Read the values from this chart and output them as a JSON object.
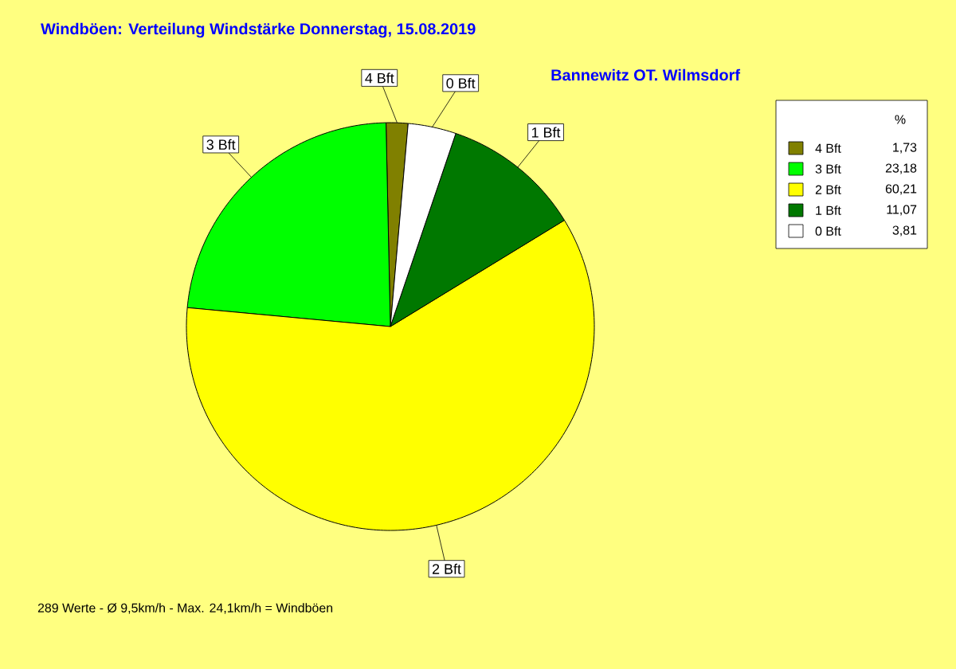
{
  "chart_data": {
    "type": "pie",
    "title": "Windböen: Verteilung Windstärke  Donnerstag, 15.08.2019",
    "subtitle": "Bannewitz OT. Wilmsdorf",
    "categories": [
      "4 Bft",
      "3 Bft",
      "2 Bft",
      "1 Bft",
      "0 Bft"
    ],
    "values": [
      1.73,
      23.18,
      60.21,
      11.07,
      3.81
    ],
    "value_labels": [
      "1,73",
      "23,18",
      "60,21",
      "11,07",
      "3,81"
    ],
    "colors": [
      "#808000",
      "#00ff00",
      "#ffff00",
      "#007800",
      "#ffffff"
    ],
    "legend_title": "%",
    "legend": "top right",
    "annotations": [
      "289 Werte   -   Ø 9,5km/h  -  Max. 24,1km/h = Windböen"
    ]
  }
}
